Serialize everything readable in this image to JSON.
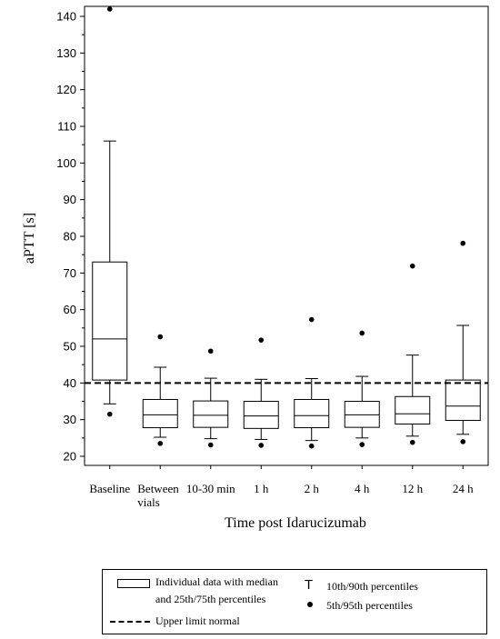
{
  "chart_data": {
    "type": "box",
    "xlabel": "Time post Idarucizumab",
    "ylabel": "aPTT [s]",
    "ylim": [
      17,
      145
    ],
    "yticks": [
      20,
      30,
      40,
      50,
      60,
      70,
      80,
      90,
      100,
      110,
      120,
      130,
      140
    ],
    "categories": [
      "Baseline",
      "Between\nvials",
      "10-30 min",
      "1 h",
      "2 h",
      "4 h",
      "12 h",
      "24 h"
    ],
    "boxes": [
      {
        "p5": 31.5,
        "p10": 34.3,
        "q1": 40.8,
        "median": 52,
        "q3": 73.0,
        "p90": 106,
        "p95": 142
      },
      {
        "p5": 23.5,
        "p10": 25.2,
        "q1": 27.8,
        "median": 31.3,
        "q3": 35.5,
        "p90": 44.3,
        "p95": 52.6
      },
      {
        "p5": 23.1,
        "p10": 24.8,
        "q1": 27.9,
        "median": 31.2,
        "q3": 35.1,
        "p90": 41.3,
        "p95": 48.7
      },
      {
        "p5": 23.0,
        "p10": 24.6,
        "q1": 27.6,
        "median": 31.0,
        "q3": 35.0,
        "p90": 41.0,
        "p95": 51.7
      },
      {
        "p5": 22.8,
        "p10": 24.3,
        "q1": 27.8,
        "median": 31.1,
        "q3": 35.5,
        "p90": 41.2,
        "p95": 57.3
      },
      {
        "p5": 23.2,
        "p10": 25.0,
        "q1": 27.9,
        "median": 31.3,
        "q3": 35.0,
        "p90": 41.8,
        "p95": 53.6
      },
      {
        "p5": 23.8,
        "p10": 25.5,
        "q1": 28.8,
        "median": 31.6,
        "q3": 36.3,
        "p90": 47.6,
        "p95": 71.9
      },
      {
        "p5": 24.0,
        "p10": 26.0,
        "q1": 29.8,
        "median": 33.7,
        "q3": 40.8,
        "p90": 55.7,
        "p95": 78.1
      }
    ],
    "reference_line": {
      "value": 40,
      "style": "dashed"
    },
    "grid": false,
    "legend_position": "bottom"
  },
  "legend": {
    "box_label_line1": "Individual data with median",
    "box_label_line2": "and 25th/75th percentiles",
    "dash_label": "Upper limit normal",
    "whisker_symbol": "T",
    "whisker_label": "10th/90th percentiles",
    "dot_label": "5th/95th percentiles"
  }
}
